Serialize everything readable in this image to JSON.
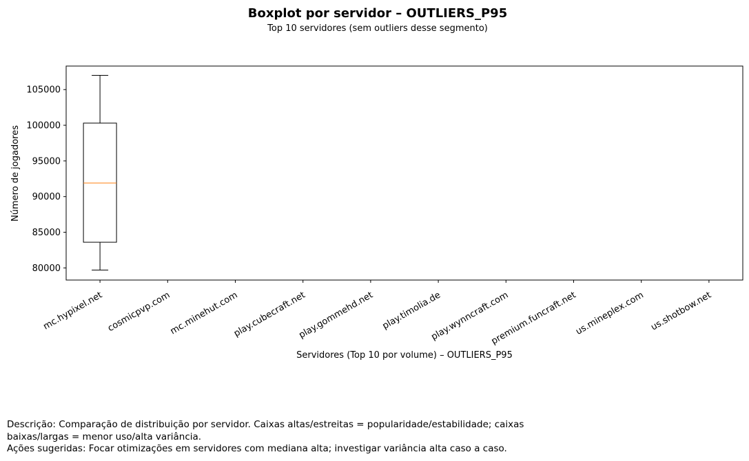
{
  "chart_data": {
    "type": "boxplot",
    "title": "Boxplot por servidor – OUTLIERS_P95",
    "subtitle": "Top 10 servidores (sem outliers desse segmento)",
    "xlabel": "Servidores (Top 10 por volume) – OUTLIERS_P95",
    "ylabel": "Número de jogadores",
    "categories": [
      "mc.hypixel.net",
      "cosmicpvp.com",
      "mc.minehut.com",
      "play.cubecraft.net",
      "play.gommehd.net",
      "play.timolia.de",
      "play.wynncraft.com",
      "premium.funcraft.net",
      "us.mineplex.com",
      "us.shotbow.net"
    ],
    "yticks": [
      80000,
      85000,
      90000,
      95000,
      100000,
      105000
    ],
    "ylim": [
      78300,
      108300
    ],
    "boxes": [
      {
        "category": "mc.hypixel.net",
        "whisker_low": 79700,
        "q1": 83600,
        "median": 91900,
        "q3": 100300,
        "whisker_high": 107000
      }
    ],
    "grid": false,
    "colors": {
      "box": "#000000",
      "median": "#ff7f0e"
    }
  },
  "footer": {
    "description": "Descrição: Comparação de distribuição por servidor. Caixas altas/estreitas = popularidade/estabilidade; caixas\nbaixas/largas = menor uso/alta variância.",
    "actions": "Ações sugeridas: Focar otimizações em servidores com mediana alta; investigar variância alta caso a caso."
  }
}
